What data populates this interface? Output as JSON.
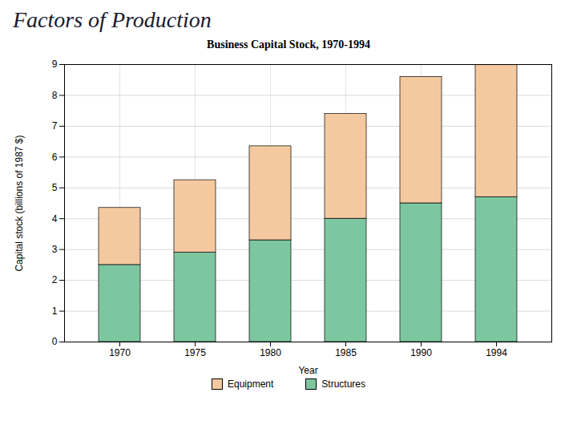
{
  "chart_data": {
    "type": "bar",
    "title": "Factors of Production",
    "subtitle": "Business Capital Stock, 1970-1994",
    "xlabel": "Year",
    "ylabel": "Capital stock (billions of 1987 $)",
    "categories": [
      "1970",
      "1975",
      "1980",
      "1985",
      "1990",
      "1994"
    ],
    "series": [
      {
        "name": "Structures",
        "color": "#7DC7A0",
        "values": [
          2.5,
          2.9,
          3.3,
          4.0,
          4.5,
          4.7
        ]
      },
      {
        "name": "Equipment",
        "color": "#F5C9A0",
        "values": [
          1.85,
          2.35,
          3.05,
          3.4,
          4.1,
          4.3
        ]
      }
    ],
    "stacked": true,
    "ylim": [
      0,
      9
    ],
    "yticks": [
      0,
      1,
      2,
      3,
      4,
      5,
      6,
      7,
      8,
      9
    ],
    "grid": true,
    "legend": "bottom"
  }
}
